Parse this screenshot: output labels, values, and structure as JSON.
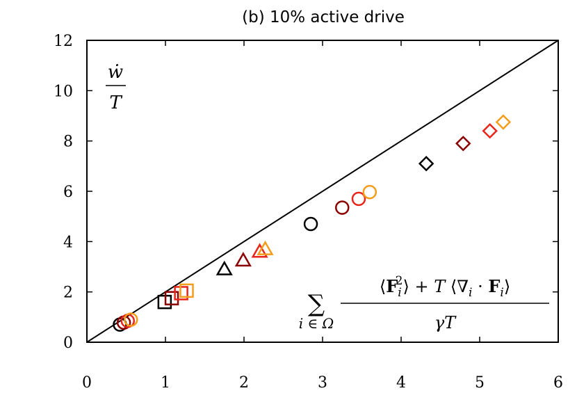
{
  "chart_data": {
    "type": "scatter",
    "title": "(b)  10% active drive",
    "xlim": [
      0,
      6
    ],
    "ylim": [
      0,
      12
    ],
    "x_ticks": [
      "0",
      "1",
      "2",
      "3",
      "4",
      "5",
      "6"
    ],
    "y_ticks": [
      "0",
      "2",
      "4",
      "6",
      "8",
      "10",
      "12"
    ],
    "reference_line": {
      "from": [
        0,
        0
      ],
      "to": [
        6,
        12
      ]
    },
    "ylabel": {
      "numerator": "ẇ",
      "denominator": "T"
    },
    "xlabel": {
      "sum_symbol": "∑",
      "sum_index": "i ∈ Ω",
      "numerator_parts": [
        "⟨",
        "F",
        "i",
        "2",
        "⟩ + ",
        "T",
        " ⟨∇",
        "i",
        " · ",
        "F",
        "i",
        "⟩"
      ],
      "denominator": "γT"
    },
    "colors": [
      "#000000",
      "#8b0000",
      "#e8251b",
      "#f59c1a"
    ],
    "series": [
      {
        "marker": "circle",
        "points": [
          [
            0.42,
            0.7
          ],
          [
            0.47,
            0.78
          ],
          [
            0.52,
            0.85
          ],
          [
            0.56,
            0.9
          ]
        ]
      },
      {
        "marker": "square",
        "points": [
          [
            0.99,
            1.6
          ],
          [
            1.08,
            1.75
          ],
          [
            1.2,
            1.95
          ],
          [
            1.27,
            2.05
          ]
        ]
      },
      {
        "marker": "triangle",
        "points": [
          [
            1.75,
            2.9
          ],
          [
            1.99,
            3.25
          ],
          [
            2.2,
            3.6
          ],
          [
            2.27,
            3.7
          ]
        ]
      },
      {
        "marker": "circle",
        "points": [
          [
            2.85,
            4.7
          ],
          [
            3.25,
            5.35
          ],
          [
            3.46,
            5.7
          ],
          [
            3.6,
            5.97
          ]
        ]
      },
      {
        "marker": "diamond",
        "points": [
          [
            4.32,
            7.1
          ],
          [
            4.79,
            7.9
          ],
          [
            5.13,
            8.4
          ],
          [
            5.3,
            8.75
          ]
        ]
      }
    ]
  }
}
